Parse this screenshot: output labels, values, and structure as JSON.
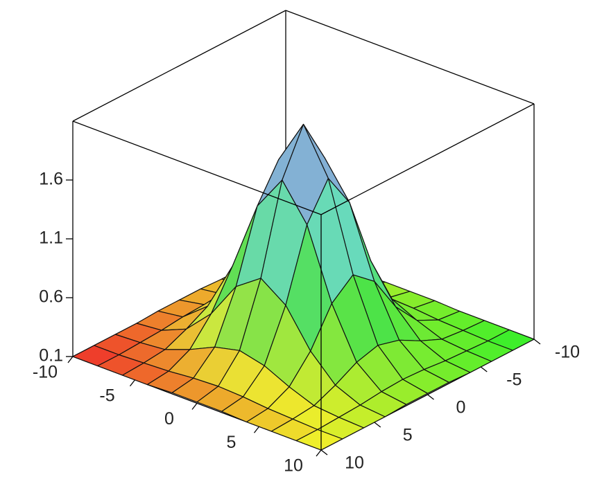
{
  "chart_data": {
    "type": "surface",
    "x": [
      -10,
      -8,
      -6,
      -4,
      -2,
      0,
      2,
      4,
      6,
      8,
      10
    ],
    "y": [
      -10,
      -8,
      -6,
      -4,
      -2,
      0,
      2,
      4,
      6,
      8,
      10
    ],
    "z": [
      [
        0.1,
        0.1,
        0.1,
        0.1,
        0.11,
        0.11,
        0.11,
        0.1,
        0.1,
        0.1,
        0.1
      ],
      [
        0.1,
        0.1,
        0.11,
        0.12,
        0.14,
        0.15,
        0.14,
        0.12,
        0.11,
        0.1,
        0.1
      ],
      [
        0.1,
        0.11,
        0.13,
        0.21,
        0.31,
        0.36,
        0.31,
        0.21,
        0.13,
        0.11,
        0.1
      ],
      [
        0.1,
        0.12,
        0.21,
        0.42,
        0.73,
        0.88,
        0.73,
        0.42,
        0.21,
        0.12,
        0.1
      ],
      [
        0.11,
        0.14,
        0.31,
        0.73,
        1.32,
        1.62,
        1.32,
        0.73,
        0.31,
        0.14,
        0.11
      ],
      [
        0.11,
        0.15,
        0.36,
        0.88,
        1.62,
        2.0,
        1.62,
        0.88,
        0.36,
        0.15,
        0.11
      ],
      [
        0.11,
        0.14,
        0.31,
        0.73,
        1.32,
        1.62,
        1.32,
        0.73,
        0.31,
        0.14,
        0.11
      ],
      [
        0.1,
        0.12,
        0.21,
        0.42,
        0.73,
        0.88,
        0.73,
        0.42,
        0.21,
        0.12,
        0.1
      ],
      [
        0.1,
        0.11,
        0.13,
        0.21,
        0.31,
        0.36,
        0.31,
        0.21,
        0.13,
        0.11,
        0.1
      ],
      [
        0.1,
        0.1,
        0.11,
        0.12,
        0.14,
        0.15,
        0.14,
        0.12,
        0.11,
        0.1,
        0.1
      ],
      [
        0.1,
        0.1,
        0.1,
        0.1,
        0.11,
        0.11,
        0.11,
        0.1,
        0.1,
        0.1,
        0.1
      ]
    ],
    "xlim": [
      -10,
      10
    ],
    "ylim": [
      -10,
      10
    ],
    "zlim": [
      0.1,
      2.1
    ],
    "xticks": [
      -10,
      -5,
      0,
      5,
      10
    ],
    "yticks": [
      -10,
      -5,
      0,
      5,
      10
    ],
    "zticks": [
      0.1,
      0.6,
      1.1,
      1.6
    ]
  }
}
